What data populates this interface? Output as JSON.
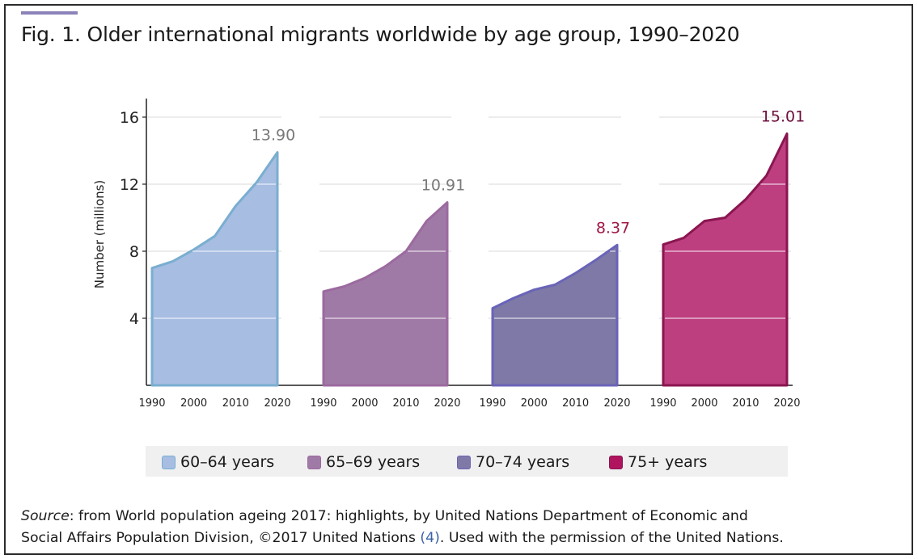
{
  "title": "Fig. 1. Older international migrants worldwide by age group, 1990–2020",
  "chart_data": {
    "type": "area",
    "ylabel": "Number (millions)",
    "ylim": [
      0,
      16
    ],
    "yticks": [
      "4",
      "8",
      "12",
      "16"
    ],
    "x": [
      1990,
      1995,
      2000,
      2005,
      2010,
      2015,
      2020
    ],
    "xticks": [
      "1990",
      "2000",
      "2010",
      "2020"
    ],
    "grid": "horizontal",
    "series": [
      {
        "name": "60–64 years",
        "color": "#a7bde2",
        "stroke": "#7aaed0",
        "label_color": "#7a7a7a",
        "end_label": "13.90",
        "values": [
          7.0,
          7.4,
          8.1,
          8.9,
          10.7,
          12.1,
          13.9
        ]
      },
      {
        "name": "65–69 years",
        "color": "#a07aa6",
        "stroke": "#9b6a9f",
        "label_color": "#7a7a7a",
        "end_label": "10.91",
        "values": [
          5.6,
          5.9,
          6.4,
          7.1,
          8.0,
          9.8,
          10.91
        ]
      },
      {
        "name": "70–74 years",
        "color": "#7e79a6",
        "stroke": "#6a64b8",
        "label_color": "#a01848",
        "end_label": "8.37",
        "values": [
          4.6,
          5.2,
          5.7,
          6.0,
          6.7,
          7.5,
          8.37
        ]
      },
      {
        "name": "75+ years",
        "color": "#bd3f80",
        "stroke": "#8a1650",
        "label_color": "#6e0e3c",
        "end_label": "15.01",
        "values": [
          8.4,
          8.8,
          9.8,
          10.0,
          11.1,
          12.5,
          15.01
        ]
      }
    ]
  },
  "legend": {
    "items": [
      {
        "label": "60–64 years",
        "color": "#a7bde2",
        "border": "#7aaed0"
      },
      {
        "label": "65–69 years",
        "color": "#a07aa6",
        "border": "#9b6a9f"
      },
      {
        "label": "70–74 years",
        "color": "#7e79a6",
        "border": "#6a64b8"
      },
      {
        "label": "75+ years",
        "color": "#b0145e",
        "border": "#8a1650"
      }
    ]
  },
  "source": {
    "prefix": "Source",
    "line1": ": from World population ageing 2017: highlights, by United Nations Department of Economic and",
    "line2a": "Social Affairs Population Division, ©2017 United Nations ",
    "ref": "(4)",
    "line2b": ". Used with the permission of the United Nations."
  }
}
